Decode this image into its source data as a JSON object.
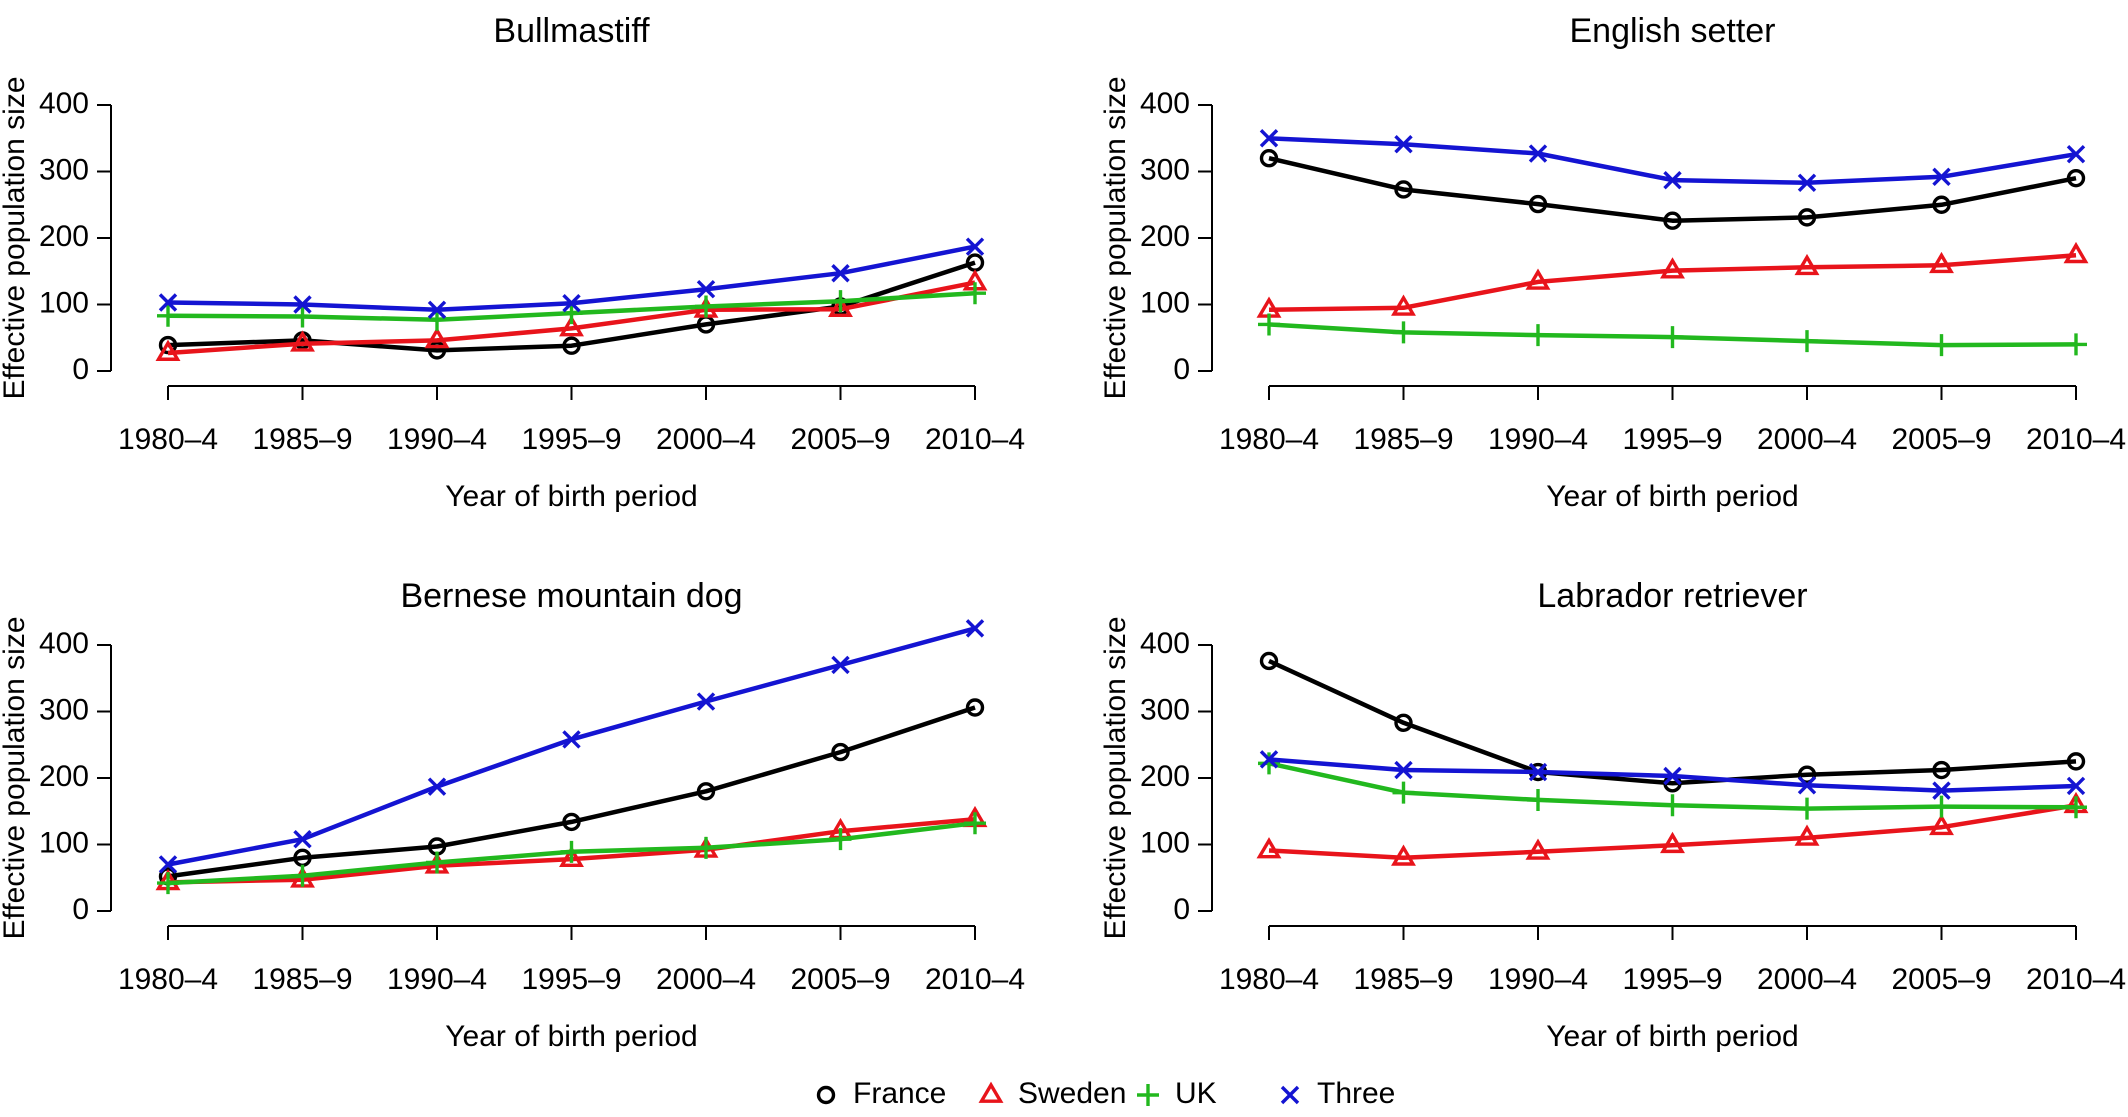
{
  "figure": {
    "x_tick_labels": [
      "1980–4",
      "1985–9",
      "1990–4",
      "1995–9",
      "2000–4",
      "2005–9",
      "2010–4"
    ],
    "y_tick_labels": [
      "0",
      "100",
      "200",
      "300",
      "400"
    ],
    "xlabel": "Year of birth period",
    "ylabel": "Effective population size"
  },
  "legend": {
    "position": "bottom-center",
    "items": [
      {
        "label": "France",
        "color": "#000000",
        "marker": "circle"
      },
      {
        "label": "Sweden",
        "color": "#e8141b",
        "marker": "triangle"
      },
      {
        "label": "UK",
        "color": "#22b81e",
        "marker": "plus"
      },
      {
        "label": "Three",
        "color": "#1414d2",
        "marker": "cross"
      }
    ]
  },
  "chart_data": [
    {
      "type": "line",
      "title": "Bullmastiff",
      "xlabel": "Year of birth period",
      "ylabel": "Effective population size",
      "categories": [
        "1980–4",
        "1985–9",
        "1990–4",
        "1995–9",
        "2000–4",
        "2005–9",
        "2010–4"
      ],
      "ylim": [
        0,
        400
      ],
      "grid": false,
      "series": [
        {
          "name": "France",
          "values": [
            39,
            46,
            31,
            38,
            70,
            97,
            163
          ]
        },
        {
          "name": "Sweden",
          "values": [
            27,
            41,
            46,
            64,
            92,
            93,
            133
          ]
        },
        {
          "name": "UK",
          "values": [
            83,
            82,
            77,
            87,
            97,
            105,
            117
          ]
        },
        {
          "name": "Three",
          "values": [
            103,
            100,
            92,
            102,
            123,
            147,
            187
          ]
        }
      ]
    },
    {
      "type": "line",
      "title": "English setter",
      "xlabel": "Year of birth period",
      "ylabel": "Effective population size",
      "categories": [
        "1980–4",
        "1985–9",
        "1990–4",
        "1995–9",
        "2000–4",
        "2005–9",
        "2010–4"
      ],
      "ylim": [
        0,
        400
      ],
      "grid": false,
      "series": [
        {
          "name": "France",
          "values": [
            320,
            273,
            251,
            226,
            231,
            250,
            290
          ]
        },
        {
          "name": "Sweden",
          "values": [
            92,
            95,
            134,
            151,
            156,
            159,
            174
          ]
        },
        {
          "name": "UK",
          "values": [
            70,
            58,
            54,
            51,
            45,
            39,
            40
          ]
        },
        {
          "name": "Three",
          "values": [
            350,
            341,
            327,
            287,
            283,
            292,
            326
          ]
        }
      ]
    },
    {
      "type": "line",
      "title": "Bernese mountain dog",
      "xlabel": "Year of birth period",
      "ylabel": "Effective population size",
      "categories": [
        "1980–4",
        "1985–9",
        "1990–4",
        "1995–9",
        "2000–4",
        "2005–9",
        "2010–4"
      ],
      "ylim": [
        0,
        400
      ],
      "grid": false,
      "series": [
        {
          "name": "France",
          "values": [
            52,
            80,
            97,
            134,
            180,
            239,
            306
          ]
        },
        {
          "name": "Sweden",
          "values": [
            43,
            47,
            68,
            78,
            92,
            120,
            138
          ]
        },
        {
          "name": "UK",
          "values": [
            42,
            53,
            73,
            89,
            95,
            108,
            132
          ]
        },
        {
          "name": "Three",
          "values": [
            70,
            108,
            187,
            258,
            315,
            370,
            425
          ]
        }
      ]
    },
    {
      "type": "line",
      "title": "Labrador retriever",
      "xlabel": "Year of birth period",
      "ylabel": "Effective population size",
      "categories": [
        "1980–4",
        "1985–9",
        "1990–4",
        "1995–9",
        "2000–4",
        "2005–9",
        "2010–4"
      ],
      "ylim": [
        0,
        400
      ],
      "grid": false,
      "series": [
        {
          "name": "France",
          "values": [
            376,
            283,
            209,
            192,
            205,
            212,
            225
          ]
        },
        {
          "name": "Sweden",
          "values": [
            91,
            80,
            89,
            99,
            110,
            126,
            159
          ]
        },
        {
          "name": "UK",
          "values": [
            222,
            178,
            167,
            159,
            154,
            157,
            156
          ]
        },
        {
          "name": "Three",
          "values": [
            228,
            212,
            209,
            203,
            189,
            181,
            188
          ]
        }
      ]
    }
  ]
}
